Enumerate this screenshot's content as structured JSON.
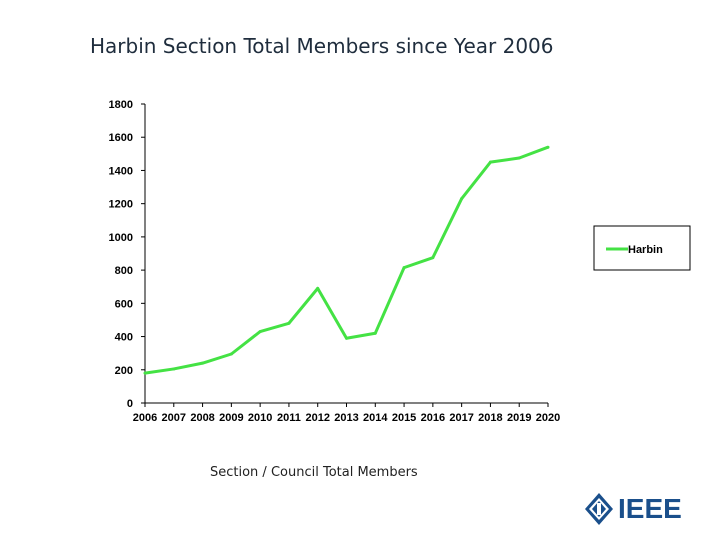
{
  "page": {
    "title": "Harbin Section Total Members since Year 2006",
    "caption": "Section / Council Total Members",
    "logo_text": "IEEE",
    "brand_color": "#1a4f8b"
  },
  "chart_data": {
    "type": "line",
    "title": "Harbin Section Total Members since Year 2006",
    "xlabel": "",
    "ylabel": "",
    "x": [
      "2006",
      "2007",
      "2008",
      "2009",
      "2010",
      "2011",
      "2012",
      "2013",
      "2014",
      "2015",
      "2016",
      "2017",
      "2018",
      "2019",
      "2020"
    ],
    "ylim": [
      0,
      1800
    ],
    "yticks": [
      0,
      200,
      400,
      600,
      800,
      1000,
      1200,
      1400,
      1600,
      1800
    ],
    "series": [
      {
        "name": "Harbin",
        "color": "#44e244",
        "values": [
          180,
          205,
          240,
          295,
          430,
          480,
          690,
          390,
          420,
          815,
          875,
          1230,
          1450,
          1475,
          1540
        ]
      }
    ],
    "legend": "right",
    "grid": false
  }
}
